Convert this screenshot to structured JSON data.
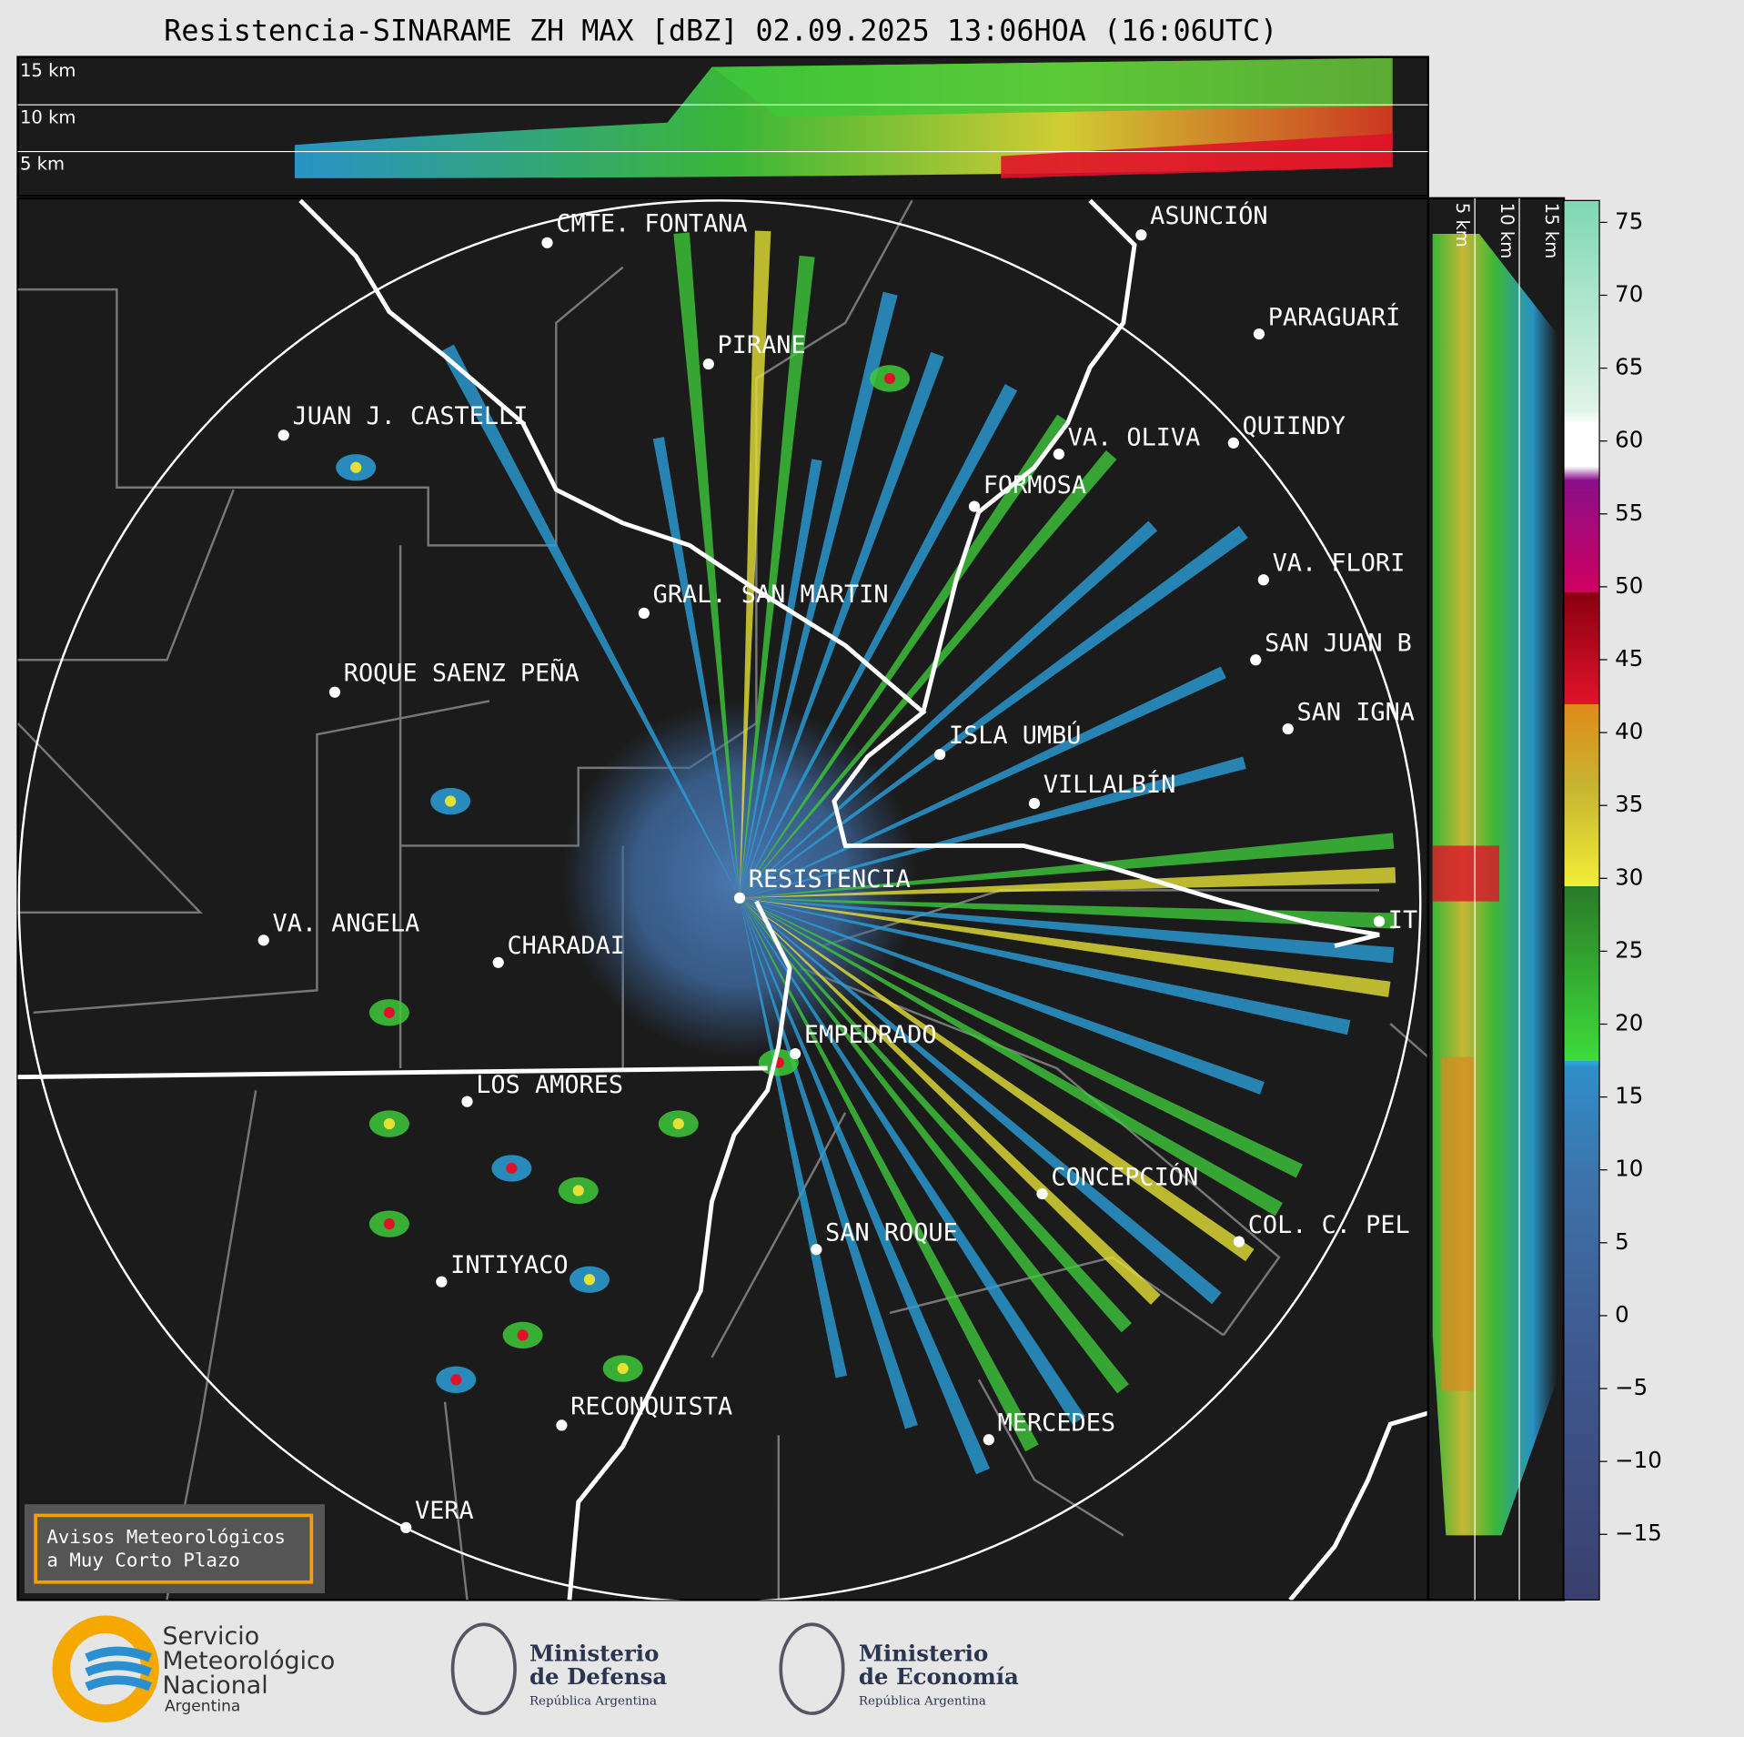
{
  "header": {
    "title": "Resistencia-SINARAME ZH MAX [dBZ] 02.09.2025 13:06HOA (16:06UTC)"
  },
  "top_panel": {
    "height_labels": [
      "15 km",
      "10 km",
      "5 km"
    ]
  },
  "side_panel": {
    "height_labels": [
      "5 km",
      "10 km",
      "15 km"
    ]
  },
  "map": {
    "cities": [
      "CMTE. FONTANA",
      "PIRANE",
      "JUAN J. CASTELLI",
      "ASUNCIÓN",
      "PARAGUARÍ",
      "QUIINDY",
      "VA. OLIVA",
      "FORMOSA",
      "GRAL. SAN MARTIN",
      "VA. FLORI",
      "SAN JUAN B",
      "SAN IGNA",
      "ROQUE SAENZ PEÑA",
      "ISLA UMBÚ",
      "VILLALBÍN",
      "RESISTENCIA",
      "VA. ANGELA",
      "CHARADAI",
      "IT",
      "EMPEDRADO",
      "LOS AMORES",
      "CONCEPCIÓN",
      "SAN ROQUE",
      "COL. C. PEL",
      "INTIYACO",
      "RECONQUISTA",
      "MERCEDES",
      "VERA"
    ]
  },
  "notice": {
    "lines": [
      "Avisos Meteorológicos",
      "a Muy Corto Plazo"
    ]
  },
  "colorbar": {
    "lim": [
      -19.5,
      76.5
    ],
    "ticks": [
      {
        "value": -15,
        "label": "−15"
      },
      {
        "value": -10,
        "label": "−10"
      },
      {
        "value": -5,
        "label": "−5"
      },
      0,
      5,
      10,
      15,
      20,
      25,
      30,
      35,
      40,
      45,
      50,
      55,
      60,
      65,
      70,
      75
    ]
  },
  "footer": {
    "smn": [
      "Servicio",
      "Meteorológico",
      "Nacional",
      "Argentina"
    ],
    "defensa": [
      "Ministerio",
      "de Defensa",
      "República Argentina"
    ],
    "economia": [
      "Ministerio",
      "de Economía",
      "República Argentina"
    ]
  }
}
